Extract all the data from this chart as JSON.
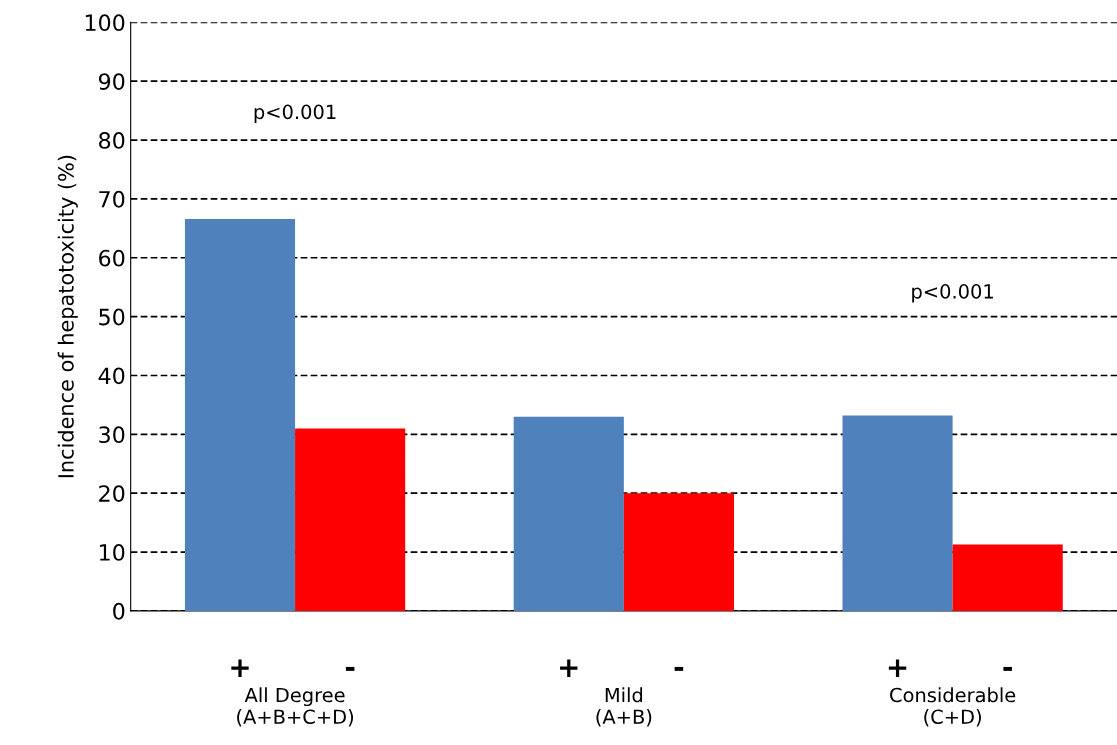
{
  "chart_data": {
    "type": "bar",
    "ylabel": "Incidence of hepatotoxicity (%)",
    "categories": [
      "All Degree\n(A+B+C+D)",
      "Mild\n(A+B)",
      "Considerable\n(C+D)"
    ],
    "series": [
      {
        "name": "+",
        "color": "#4f81bd",
        "values": [
          66.6,
          33,
          33.2
        ]
      },
      {
        "name": "-",
        "color": "#ff0000",
        "values": [
          31,
          20,
          11.3
        ]
      }
    ],
    "ylim": [
      0,
      100
    ],
    "yticks": [
      0,
      10,
      20,
      30,
      40,
      50,
      60,
      70,
      80,
      90,
      100
    ],
    "grid": "y",
    "legend": false,
    "annotations": [
      "p<0.001",
      "p<0.001"
    ]
  }
}
